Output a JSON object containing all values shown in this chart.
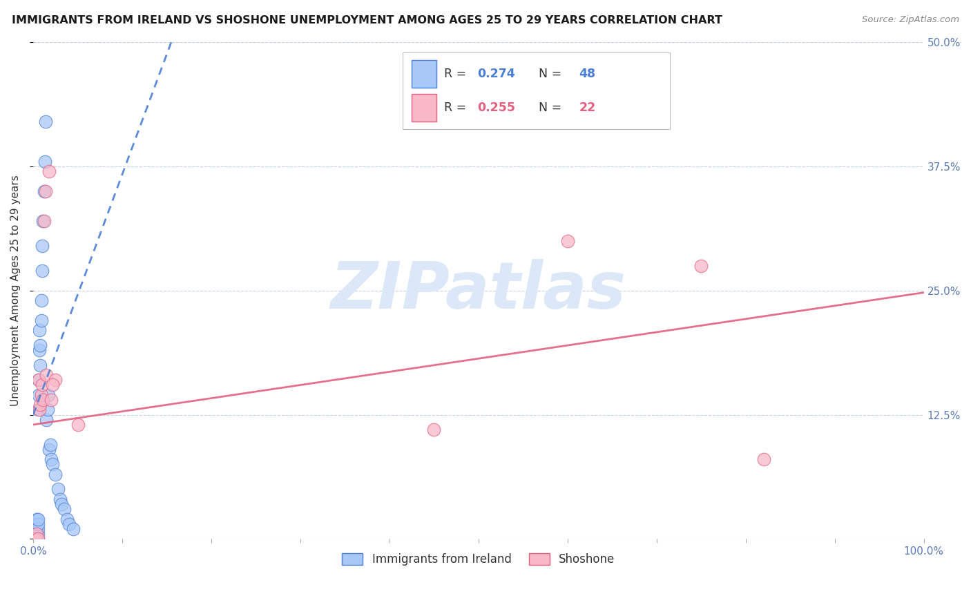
{
  "title": "IMMIGRANTS FROM IRELAND VS SHOSHONE UNEMPLOYMENT AMONG AGES 25 TO 29 YEARS CORRELATION CHART",
  "source": "Source: ZipAtlas.com",
  "ylabel": "Unemployment Among Ages 25 to 29 years",
  "title_fontsize": 11.5,
  "source_fontsize": 9.5,
  "label_fontsize": 11,
  "tick_fontsize": 11,
  "legend_label1": "Immigrants from Ireland",
  "legend_label2": "Shoshone",
  "xmin": 0.0,
  "xmax": 1.0,
  "ymin": 0.0,
  "ymax": 0.5,
  "xticks": [
    0.0,
    0.1,
    0.2,
    0.3,
    0.4,
    0.5,
    0.6,
    0.7,
    0.8,
    0.9,
    1.0
  ],
  "xticklabels": [
    "0.0%",
    "",
    "",
    "",
    "",
    "",
    "",
    "",
    "",
    "",
    "100.0%"
  ],
  "yticks": [
    0.0,
    0.125,
    0.25,
    0.375,
    0.5
  ],
  "yticklabels_right": [
    "",
    "12.5%",
    "25.0%",
    "37.5%",
    "50.0%"
  ],
  "color_blue": "#a8c8f8",
  "color_pink": "#f8b8c8",
  "trendline_blue": "#4a7fd4",
  "trendline_pink": "#e06080",
  "watermark_color": "#dce8f8",
  "scatter_blue_x": [
    0.001,
    0.001,
    0.002,
    0.002,
    0.002,
    0.003,
    0.003,
    0.003,
    0.003,
    0.004,
    0.004,
    0.004,
    0.004,
    0.005,
    0.005,
    0.005,
    0.005,
    0.005,
    0.006,
    0.006,
    0.006,
    0.007,
    0.007,
    0.008,
    0.008,
    0.009,
    0.009,
    0.01,
    0.01,
    0.011,
    0.012,
    0.013,
    0.014,
    0.015,
    0.016,
    0.017,
    0.018,
    0.019,
    0.02,
    0.022,
    0.025,
    0.028,
    0.03,
    0.032,
    0.035,
    0.038,
    0.04,
    0.045
  ],
  "scatter_blue_y": [
    0.0,
    0.005,
    0.0,
    0.005,
    0.01,
    0.0,
    0.005,
    0.01,
    0.015,
    0.0,
    0.005,
    0.01,
    0.02,
    0.0,
    0.005,
    0.01,
    0.015,
    0.02,
    0.13,
    0.145,
    0.16,
    0.19,
    0.21,
    0.175,
    0.195,
    0.22,
    0.24,
    0.27,
    0.295,
    0.32,
    0.35,
    0.38,
    0.42,
    0.12,
    0.13,
    0.145,
    0.09,
    0.095,
    0.08,
    0.075,
    0.065,
    0.05,
    0.04,
    0.035,
    0.03,
    0.02,
    0.015,
    0.01
  ],
  "scatter_pink_x": [
    0.002,
    0.003,
    0.004,
    0.005,
    0.006,
    0.007,
    0.008,
    0.009,
    0.01,
    0.011,
    0.015,
    0.02,
    0.025,
    0.05,
    0.012,
    0.014,
    0.018,
    0.022,
    0.45,
    0.6,
    0.75,
    0.82
  ],
  "scatter_pink_y": [
    0.0,
    0.0,
    0.005,
    0.0,
    0.16,
    0.13,
    0.135,
    0.145,
    0.155,
    0.14,
    0.165,
    0.14,
    0.16,
    0.115,
    0.32,
    0.35,
    0.37,
    0.155,
    0.11,
    0.3,
    0.275,
    0.08
  ],
  "trend_blue_x0": 0.0,
  "trend_blue_x1": 0.155,
  "trend_blue_y0": 0.125,
  "trend_blue_y1": 0.5,
  "trend_pink_x0": 0.0,
  "trend_pink_x1": 1.0,
  "trend_pink_y0": 0.115,
  "trend_pink_y1": 0.248
}
